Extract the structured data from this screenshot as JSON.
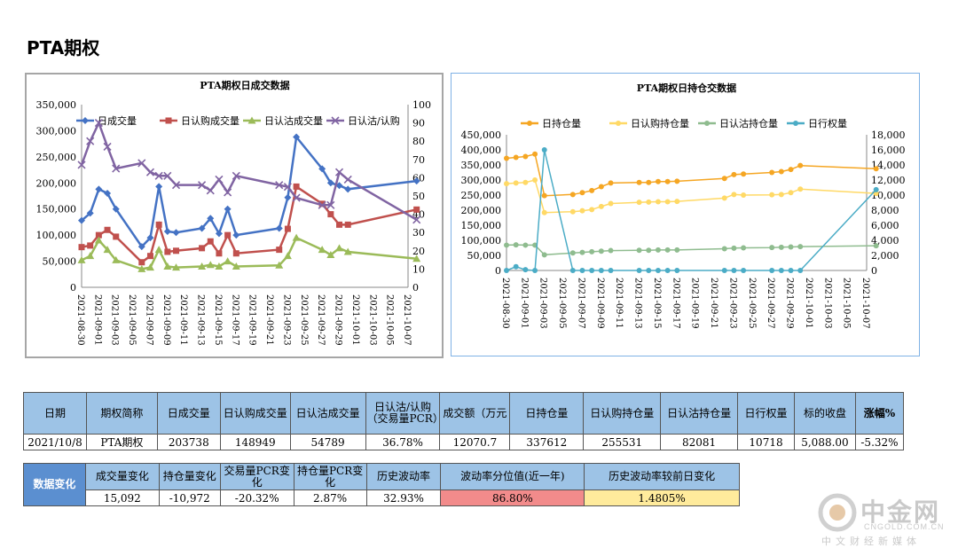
{
  "page_title": "PTA期权",
  "chart_data": [
    {
      "type": "line",
      "title": "PTA期权日成交数据",
      "x": [
        "2021-08-30",
        "2021-08-31",
        "2021-09-01",
        "2021-09-02",
        "2021-09-03",
        "2021-09-06",
        "2021-09-07",
        "2021-09-08",
        "2021-09-09",
        "2021-09-10",
        "2021-09-13",
        "2021-09-14",
        "2021-09-15",
        "2021-09-16",
        "2021-09-17",
        "2021-09-22",
        "2021-09-23",
        "2021-09-24",
        "2021-09-27",
        "2021-09-28",
        "2021-09-29",
        "2021-09-30",
        "2021-10-08"
      ],
      "xticks": [
        "2021-08-30",
        "2021-09-01",
        "2021-09-03",
        "2021-09-05",
        "2021-09-07",
        "2021-09-09",
        "2021-09-11",
        "2021-09-13",
        "2021-09-15",
        "2021-09-17",
        "2021-09-19",
        "2021-09-21",
        "2021-09-23",
        "2021-09-25",
        "2021-09-27",
        "2021-09-29",
        "2021-10-01",
        "2021-10-03",
        "2021-10-05",
        "2021-10-07"
      ],
      "ylim_left": [
        0,
        350000
      ],
      "yticks_left": [
        "0",
        "50,000",
        "100,000",
        "150,000",
        "200,000",
        "250,000",
        "300,000",
        "350,000"
      ],
      "ylim_right": [
        0,
        100
      ],
      "yticks_right": [
        "0",
        "10",
        "20",
        "30",
        "40",
        "50",
        "60",
        "70",
        "80",
        "90",
        "100"
      ],
      "legend_placement": "top",
      "series": [
        {
          "name": "日成交量",
          "axis": "left",
          "color": "#4472c4",
          "marker": "diamond",
          "values": [
            128000,
            142000,
            188000,
            180000,
            150000,
            78000,
            95000,
            193000,
            107000,
            105000,
            113000,
            132000,
            103000,
            150000,
            100000,
            113000,
            172000,
            288000,
            227000,
            200000,
            195000,
            188000,
            203738
          ]
        },
        {
          "name": "日认购成交量",
          "axis": "left",
          "color": "#c0504d",
          "marker": "square",
          "values": [
            77000,
            80000,
            100000,
            110000,
            97000,
            48000,
            60000,
            120000,
            68000,
            70000,
            75000,
            88000,
            65000,
            100000,
            65000,
            72000,
            112000,
            193000,
            160000,
            140000,
            120000,
            120000,
            148949
          ]
        },
        {
          "name": "日认沽成交量",
          "axis": "left",
          "color": "#9bbb59",
          "marker": "triangle",
          "values": [
            52000,
            60000,
            90000,
            72000,
            52000,
            35000,
            38000,
            72000,
            40000,
            38000,
            40000,
            43000,
            40000,
            50000,
            40000,
            42000,
            60000,
            95000,
            72000,
            62000,
            75000,
            68000,
            54789
          ]
        },
        {
          "name": "日认沽/认购",
          "axis": "right",
          "color": "#8064a2",
          "marker": "x",
          "values": [
            67,
            80,
            90,
            77,
            65,
            68,
            63,
            61,
            61,
            56,
            56,
            53,
            59,
            52,
            61,
            56,
            55,
            49,
            45,
            45,
            63,
            59,
            37
          ]
        }
      ]
    },
    {
      "type": "line",
      "title": "PTA期权日持仓交数据",
      "x": [
        "2021-08-30",
        "2021-08-31",
        "2021-09-01",
        "2021-09-02",
        "2021-09-03",
        "2021-09-06",
        "2021-09-07",
        "2021-09-08",
        "2021-09-09",
        "2021-09-10",
        "2021-09-13",
        "2021-09-14",
        "2021-09-15",
        "2021-09-16",
        "2021-09-17",
        "2021-09-22",
        "2021-09-23",
        "2021-09-24",
        "2021-09-27",
        "2021-09-28",
        "2021-09-29",
        "2021-09-30",
        "2021-10-08"
      ],
      "xticks": [
        "2021-08-30",
        "2021-09-01",
        "2021-09-03",
        "2021-09-05",
        "2021-09-07",
        "2021-09-09",
        "2021-09-11",
        "2021-09-13",
        "2021-09-15",
        "2021-09-17",
        "2021-09-19",
        "2021-09-21",
        "2021-09-23",
        "2021-09-25",
        "2021-09-27",
        "2021-09-29",
        "2021-10-01",
        "2021-10-03",
        "2021-10-05",
        "2021-10-07"
      ],
      "ylim_left": [
        0,
        450000
      ],
      "yticks_left": [
        "0",
        "50,000",
        "100,000",
        "150,000",
        "200,000",
        "250,000",
        "300,000",
        "350,000",
        "400,000",
        "450,000"
      ],
      "ylim_right": [
        0,
        18000
      ],
      "yticks_right": [
        "0",
        "2,000",
        "4,000",
        "6,000",
        "8,000",
        "10,000",
        "12,000",
        "14,000",
        "16,000",
        "18,000"
      ],
      "legend_placement": "top",
      "series": [
        {
          "name": "日持仓量",
          "axis": "left",
          "color": "#f5a623",
          "values": [
            372000,
            375000,
            378000,
            386000,
            248000,
            252000,
            258000,
            265000,
            278000,
            290000,
            292000,
            292000,
            295000,
            295000,
            296000,
            305000,
            318000,
            320000,
            325000,
            328000,
            335000,
            348000,
            337612
          ]
        },
        {
          "name": "日认购持仓量",
          "axis": "left",
          "color": "#ffd966",
          "values": [
            288000,
            290000,
            292000,
            300000,
            192000,
            195000,
            198000,
            202000,
            212000,
            222000,
            226000,
            227000,
            228000,
            228000,
            229000,
            240000,
            252000,
            250000,
            251000,
            252000,
            258000,
            270000,
            255531
          ]
        },
        {
          "name": "日认沽持仓量",
          "axis": "left",
          "color": "#8fbc8f",
          "values": [
            84000,
            85000,
            84000,
            84000,
            52000,
            58000,
            60000,
            62000,
            64000,
            66000,
            67000,
            67000,
            68000,
            68000,
            68000,
            72000,
            74000,
            75000,
            76000,
            77000,
            78000,
            79000,
            82081
          ]
        },
        {
          "name": "日行权量",
          "axis": "right",
          "color": "#4bacc6",
          "values": [
            0,
            500,
            100,
            0,
            16000,
            0,
            0,
            0,
            0,
            0,
            0,
            0,
            0,
            0,
            0,
            0,
            0,
            0,
            0,
            0,
            0,
            0,
            10718
          ]
        }
      ]
    }
  ],
  "table1": {
    "headers": [
      "日期",
      "期权简称",
      "日成交量",
      "日认购成交量",
      "日认沽成交量",
      "日认沽/认购（交易量PCR）",
      "成交额（万元",
      "日持仓量",
      "日认购持仓量",
      "日认沽持仓量",
      "日行权量",
      "标的收盘",
      "涨幅%"
    ],
    "row": [
      "2021/10/8",
      "PTA期权",
      "203738",
      "148949",
      "54789",
      "36.78%",
      "12070.7",
      "337612",
      "255531",
      "82081",
      "10718",
      "5,088.00",
      "-5.32%"
    ]
  },
  "table2": {
    "row_label": "数据变化",
    "headers": [
      "成交量变化",
      "持仓量变化",
      "交易量PCR变化",
      "持仓量PCR变化",
      "历史波动率",
      "波动率分位值(近一年)",
      "历史波动率较前日变化"
    ],
    "row": [
      "15,092",
      "-10,972",
      "-20.32%",
      "2.87%",
      "32.93%",
      "86.80%",
      "1.4805%"
    ],
    "highlight_colors": {
      "percentile": "#f28b8b",
      "hv_change": "#ffeb9c"
    }
  },
  "logo": {
    "name": "中金网",
    "domain": "CNGOLD.COM.CN",
    "slogan": "中文财经新媒体"
  }
}
